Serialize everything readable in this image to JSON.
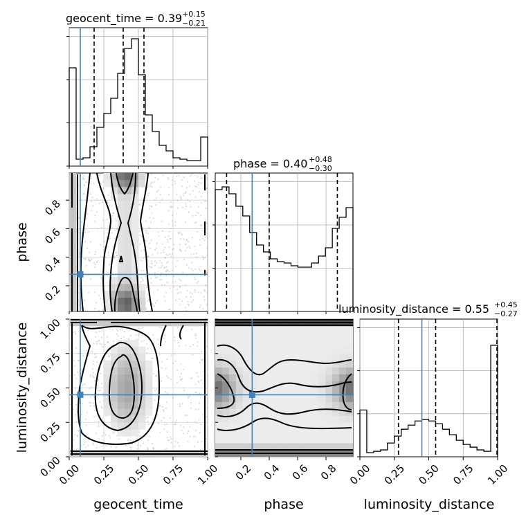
{
  "chart_data": {
    "type": "corner",
    "parameters": [
      "geocent_time",
      "phase",
      "luminosity_distance"
    ],
    "ranges": {
      "geocent_time": [
        0.0,
        1.0
      ],
      "phase": [
        0.02,
        0.99
      ],
      "luminosity_distance": [
        0.0,
        1.0
      ]
    },
    "truths": {
      "geocent_time": 0.08,
      "phase": 0.28,
      "luminosity_distance": 0.45
    },
    "truth_color": "#4682b4",
    "titles": {
      "geocent_time": {
        "main": "geocent_time = 0.39",
        "plus": "+0.15",
        "minus": "−0.21"
      },
      "phase": {
        "main": "phase = 0.40",
        "plus": "+0.48",
        "minus": "−0.30"
      },
      "luminosity_distance": {
        "main": "luminosity_distance = 0.55",
        "plus": "+0.45",
        "minus": "−0.27"
      }
    },
    "quantiles": {
      "geocent_time": [
        0.18,
        0.39,
        0.54
      ],
      "phase": [
        0.1,
        0.4,
        0.88
      ],
      "luminosity_distance": [
        0.28,
        0.55,
        1.0
      ]
    },
    "histograms": {
      "geocent_time": [
        0.71,
        0.05,
        0.06,
        0.14,
        0.28,
        0.38,
        0.49,
        0.67,
        0.85,
        0.92,
        0.66,
        0.37,
        0.25,
        0.15,
        0.11,
        0.06,
        0.05,
        0.04,
        0.04,
        0.21
      ],
      "phase": [
        0.88,
        0.9,
        0.85,
        0.76,
        0.69,
        0.57,
        0.48,
        0.43,
        0.38,
        0.36,
        0.35,
        0.33,
        0.32,
        0.32,
        0.35,
        0.4,
        0.46,
        0.6,
        0.68,
        0.75
      ],
      "luminosity_distance": [
        0.34,
        0.03,
        0.04,
        0.05,
        0.1,
        0.15,
        0.2,
        0.23,
        0.26,
        0.27,
        0.26,
        0.24,
        0.2,
        0.16,
        0.12,
        0.09,
        0.07,
        0.05,
        0.04,
        0.81
      ]
    },
    "x_ticks": {
      "geocent_time": [
        "0.00",
        "0.25",
        "0.50",
        "0.75",
        "1.00"
      ],
      "phase": [
        "0.2",
        "0.4",
        "0.6",
        "0.8"
      ],
      "luminosity_distance": [
        "0.00",
        "0.25",
        "0.50",
        "0.75",
        "1.00"
      ]
    },
    "y_ticks": {
      "phase": [
        "0.2",
        "0.4",
        "0.6",
        "0.8"
      ],
      "luminosity_distance": [
        "0.00",
        "0.25",
        "0.50",
        "0.75",
        "1.00"
      ]
    },
    "axis_labels": {
      "x": [
        "geocent_time",
        "phase",
        "luminosity_distance"
      ],
      "y": [
        "phase",
        "luminosity_distance"
      ]
    },
    "grid": true
  }
}
